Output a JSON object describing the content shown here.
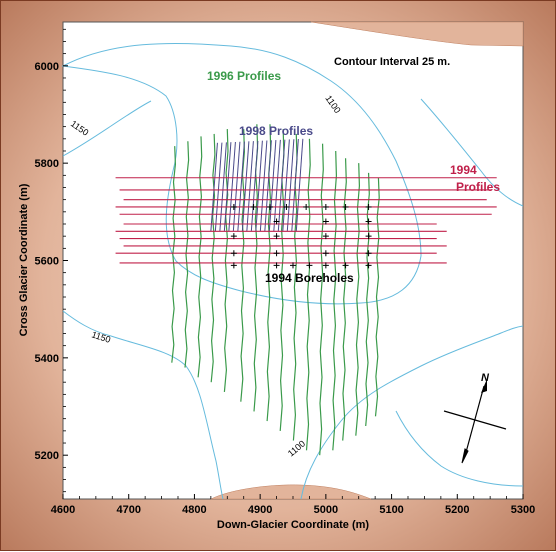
{
  "map": {
    "contour_interval": "Contour Interval 25 m.",
    "profiles_1996": "1996  Profiles",
    "profiles_1998": "1998  Profiles",
    "profiles_1994_line1": "1994",
    "profiles_1994_line2": "Profiles",
    "boreholes_1994": "1994 Boreholes",
    "north": "N",
    "xlabel": "Down-Glacier Coordinate (m)",
    "ylabel": "Cross Glacier Coordinate (m)",
    "contour_labels": [
      "1100",
      "1150",
      "1150",
      "1100"
    ],
    "x_ticks": [
      "4600",
      "4700",
      "4800",
      "4900",
      "5000",
      "5100",
      "5200",
      "5300"
    ],
    "y_ticks": [
      "6000",
      "5800",
      "5600",
      "5400",
      "5200"
    ],
    "colors": {
      "profiles_1996": "#3a9a4a",
      "profiles_1998": "#4a4a8a",
      "profiles_1994": "#c0204a",
      "contours": "#66bbdd",
      "rock": "#e2b49b"
    }
  },
  "chart_data": {
    "type": "scatter",
    "xlabel": "Down-Glacier Coordinate (m)",
    "ylabel": "Cross Glacier Coordinate (m)",
    "xlim": [
      4600,
      5300
    ],
    "ylim": [
      5110,
      6090
    ],
    "boreholes": [
      [
        4860,
        5710
      ],
      [
        4890,
        5710
      ],
      [
        4915,
        5710
      ],
      [
        4940,
        5710
      ],
      [
        4970,
        5710
      ],
      [
        5000,
        5710
      ],
      [
        5030,
        5710
      ],
      [
        5065,
        5710
      ],
      [
        4860,
        5650
      ],
      [
        4925,
        5650
      ],
      [
        5000,
        5650
      ],
      [
        5065,
        5650
      ],
      [
        4860,
        5615
      ],
      [
        4925,
        5615
      ],
      [
        5000,
        5615
      ],
      [
        5065,
        5615
      ],
      [
        4860,
        5590
      ],
      [
        4925,
        5590
      ],
      [
        4950,
        5590
      ],
      [
        4975,
        5590
      ],
      [
        5000,
        5590
      ],
      [
        5030,
        5590
      ],
      [
        5065,
        5590
      ],
      [
        4925,
        5680
      ],
      [
        5000,
        5680
      ],
      [
        5065,
        5680
      ]
    ],
    "profiles_1994_y": [
      5770,
      5745,
      5725,
      5710,
      5695,
      5675,
      5660,
      5645,
      5630,
      5615,
      5595
    ],
    "profiles_1994_x": [
      4680,
      5260
    ],
    "profiles_1996": [
      {
        "x": 4770,
        "y": [
          5390,
          5835
        ]
      },
      {
        "x": 4790,
        "y": [
          5380,
          5845
        ]
      },
      {
        "x": 4810,
        "y": [
          5360,
          5855
        ]
      },
      {
        "x": 4830,
        "y": [
          5350,
          5860
        ]
      },
      {
        "x": 4850,
        "y": [
          5330,
          5870
        ]
      },
      {
        "x": 4875,
        "y": [
          5310,
          5870
        ]
      },
      {
        "x": 4895,
        "y": [
          5290,
          5880
        ]
      },
      {
        "x": 4915,
        "y": [
          5270,
          5880
        ]
      },
      {
        "x": 4935,
        "y": [
          5250,
          5870
        ]
      },
      {
        "x": 4955,
        "y": [
          5230,
          5860
        ]
      },
      {
        "x": 4975,
        "y": [
          5210,
          5850
        ]
      },
      {
        "x": 4995,
        "y": [
          5200,
          5840
        ]
      },
      {
        "x": 5015,
        "y": [
          5210,
          5825
        ]
      },
      {
        "x": 5030,
        "y": [
          5230,
          5810
        ]
      },
      {
        "x": 5050,
        "y": [
          5240,
          5800
        ]
      },
      {
        "x": 5065,
        "y": [
          5260,
          5780
        ]
      },
      {
        "x": 5080,
        "y": [
          5280,
          5770
        ]
      }
    ],
    "profiles_1998": {
      "x_range": [
        4830,
        4960
      ],
      "y_range": [
        5660,
        5850
      ],
      "count": 20
    }
  }
}
